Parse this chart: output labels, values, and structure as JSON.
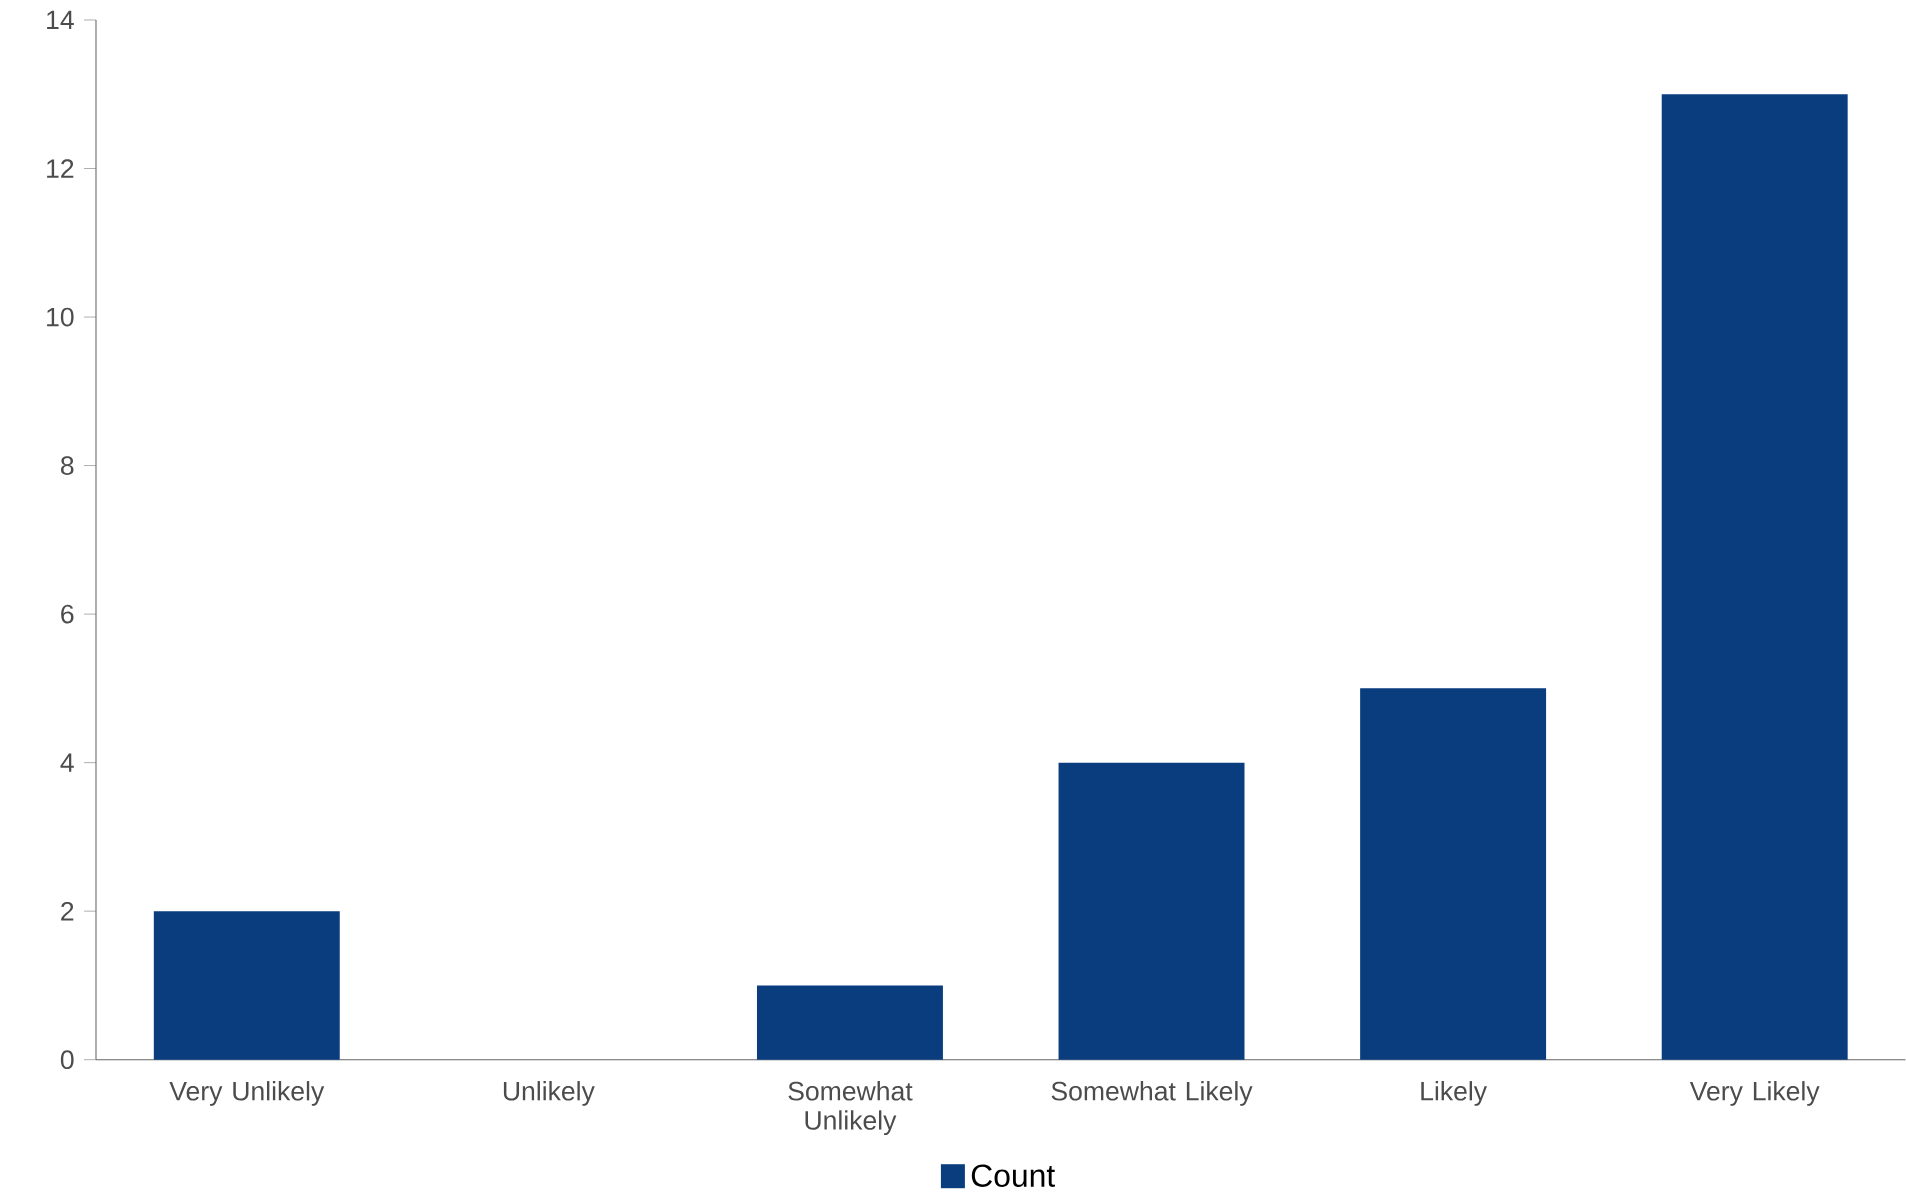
{
  "chart_data": {
    "type": "bar",
    "categories": [
      "Very Unlikely",
      "Unlikely",
      "Somewhat Unlikely",
      "Somewhat Likely",
      "Likely",
      "Very Likely"
    ],
    "series": [
      {
        "name": "Count",
        "color": "#0a3d7e",
        "values": [
          2,
          0,
          1,
          4,
          5,
          13
        ]
      }
    ],
    "ylim": [
      0,
      14
    ],
    "yticks": [
      0,
      2,
      4,
      6,
      8,
      10,
      12,
      14
    ],
    "legend": "bottom"
  }
}
